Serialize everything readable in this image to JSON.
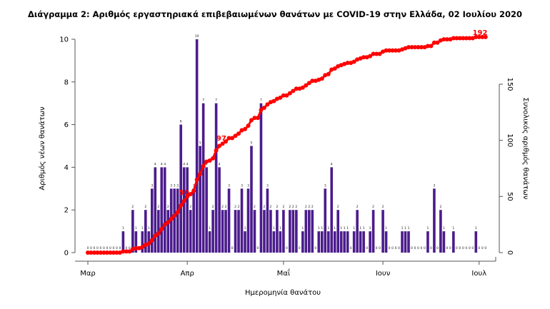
{
  "chart_data": {
    "type": "bar",
    "title": "Διάγραμμα 2: Αριθμός εργαστηριακά επιβεβαιωμένων θανάτων με COVID-19 στην Ελλάδα, 02 Ιουλίου 2020",
    "xlabel": "Ημερομηνία θανάτου",
    "ylabel": "Αριθμός νέων θανάτων",
    "y2label": "Συνολικός αριθμός θανάτων",
    "ylim": [
      0,
      10
    ],
    "y2lim": [
      0,
      150
    ],
    "yticks": [
      "0",
      "2",
      "4",
      "6",
      "8",
      "10"
    ],
    "y2ticks": [
      "0",
      "50",
      "100",
      "150"
    ],
    "xticks": [
      "Μαρ",
      "Απρ",
      "Μαΐ",
      "Ιουν",
      "Ιουλ"
    ],
    "start_date": "2020-03-01",
    "end_date": "2020-07-02",
    "grid": false,
    "series": [
      {
        "name": "Αριθμός νέων θανάτων",
        "type": "bar",
        "color": "#4b1c8c",
        "values": [
          0,
          0,
          0,
          0,
          0,
          0,
          0,
          0,
          0,
          0,
          0,
          1,
          0,
          0,
          2,
          1,
          0,
          1,
          2,
          1,
          3,
          4,
          2,
          4,
          4,
          2,
          3,
          3,
          3,
          6,
          4,
          4,
          2,
          3,
          10,
          5,
          7,
          4,
          1,
          2,
          7,
          4,
          2,
          2,
          3,
          0,
          2,
          2,
          3,
          1,
          3,
          5,
          2,
          0,
          7,
          2,
          3,
          2,
          1,
          2,
          1,
          2,
          0,
          2,
          2,
          2,
          0,
          1,
          2,
          2,
          2,
          0,
          1,
          1,
          3,
          1,
          4,
          1,
          2,
          1,
          1,
          1,
          0,
          1,
          2,
          1,
          1,
          0,
          1,
          2,
          0,
          0,
          2,
          1,
          0,
          0,
          0,
          0,
          1,
          1,
          1,
          0,
          0,
          0,
          0,
          0,
          1,
          0,
          3,
          0,
          2,
          1,
          0,
          0,
          1,
          0,
          0,
          0,
          0,
          0,
          0,
          1,
          0,
          0,
          0
        ]
      },
      {
        "name": "Συνολικός αριθμός θανάτων",
        "type": "line",
        "color": "#ff0000",
        "axis": "right"
      }
    ],
    "annotations": [
      "50",
      "97",
      "192"
    ]
  }
}
